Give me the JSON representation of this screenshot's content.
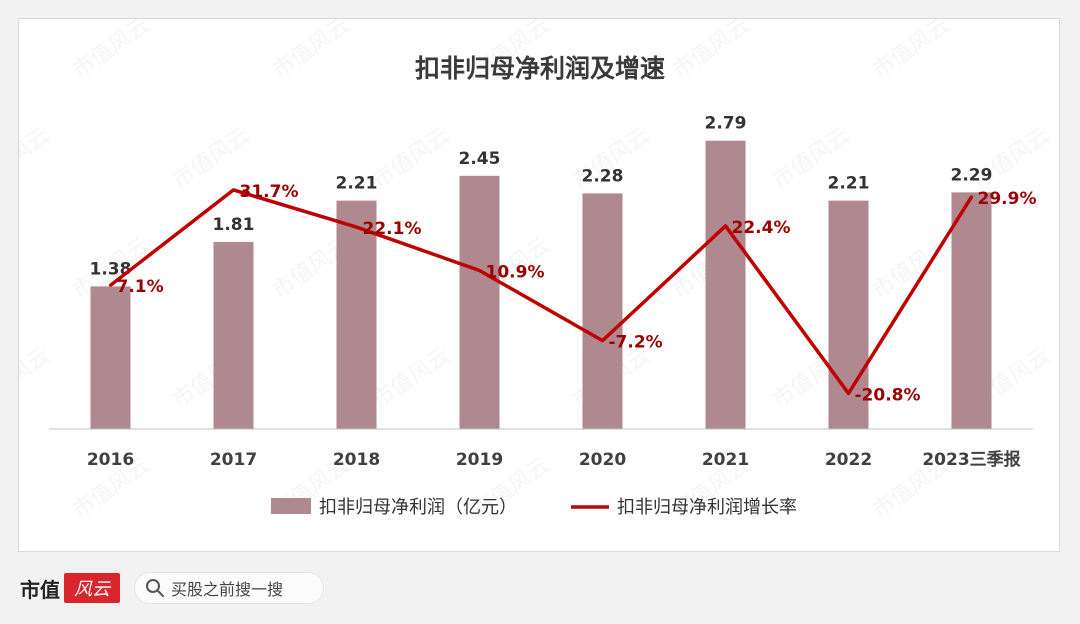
{
  "chart_data": {
    "type": "bar+line",
    "title": "扣非归母净利润及增速",
    "categories": [
      "2016",
      "2017",
      "2018",
      "2019",
      "2020",
      "2021",
      "2022",
      "2023三季报"
    ],
    "series": [
      {
        "name": "扣非归母净利润（亿元）",
        "type": "bar",
        "values": [
          1.38,
          1.81,
          2.21,
          2.45,
          2.28,
          2.79,
          2.21,
          2.29
        ],
        "labels": [
          "1.38",
          "1.81",
          "2.21",
          "2.45",
          "2.28",
          "2.79",
          "2.21",
          "2.29"
        ]
      },
      {
        "name": "扣非归母净利润增长率",
        "type": "line",
        "values": [
          7.1,
          31.7,
          22.1,
          10.9,
          -7.2,
          22.4,
          -20.8,
          29.9
        ],
        "labels": [
          "7.1%",
          "31.7%",
          "22.1%",
          "10.9%",
          "-7.2%",
          "22.4%",
          "-20.8%",
          "29.9%"
        ]
      }
    ],
    "bar_ylim": [
      0,
      3.0
    ],
    "line_ylim": [
      -30,
      50
    ],
    "legend": "bottom",
    "colors": {
      "bar": "#b08890",
      "line": "#c00000",
      "line_label": "#9a0000"
    }
  },
  "watermark": "市值风云",
  "footer": {
    "brand": "市值",
    "logo": "风云",
    "search_text": "买股之前搜一搜",
    "search_icon": "search-icon"
  }
}
